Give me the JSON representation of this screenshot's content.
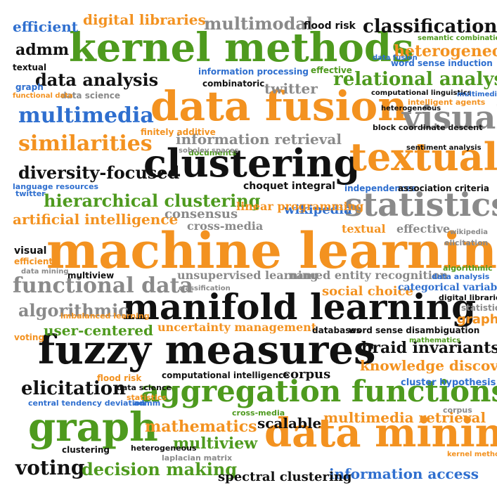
{
  "palette": {
    "green": "#4e9a1e",
    "orange": "#f39220",
    "blue": "#2f6fcf",
    "black": "#111111",
    "gray": "#8a8a8a"
  },
  "words": {
    "kernel_methods": "kernel methods",
    "data_fusion": "data fusion",
    "clustering": "clustering",
    "textual": "textual",
    "statistics": "statistics",
    "machine_learning": "machine learning",
    "manifold_learning": "manifold learning",
    "fuzzy_measures": "fuzzy measures",
    "aggregation_functions": "aggregation functions",
    "data_mining": "data mining",
    "graph": "graph",
    "visual": "visual",
    "classification": "classification",
    "multimedia": "multimedia",
    "similarities": "similarities",
    "data_analysis": "data analysis",
    "relational_analysis": "relational analysis",
    "information_retrieval": "information retrieval",
    "diversity_focused": "diversity-focused",
    "hierarchical_clustering": "hierarchical clustering",
    "artificial_intelligence": "artificial intelligence",
    "functional_data": "functional data",
    "algorithmic": "algorithmic",
    "elicitation": "elicitation",
    "voting": "voting",
    "decision_making": "decision making",
    "braid_invariants": "braid invariants",
    "knowledge_discovery": "knowledge discovery",
    "multimedia_retrieval": "multimedia retrieval",
    "information_access": "information access",
    "mathematics": "mathematics",
    "multiview": "multiview",
    "user_centered": "user-centered",
    "uncertainty_management": "uncertainty management",
    "similarities2": "similarities",
    "heterogeneous": "heterogeneous",
    "digital_libraries": "digital libraries",
    "efficient": "efficient",
    "admm": "admm",
    "multimodal": "multimodal",
    "twitter": "twitter",
    "wikipedia": "wikipedia",
    "consensus": "consensus",
    "cross_media": "cross-media",
    "linear_programming": "linear programming",
    "social_choice": "social choice",
    "categorical_variables": "categorical variables",
    "unsupervised_learning": "unsupervised learning",
    "named_entity_recognition": "named entity recognition",
    "corpus": "corpus",
    "scalable": "scalable",
    "spectral_clustering": "spectral clustering",
    "fuzzy_measures_small": "fuzzy measures",
    "information_processing": "information processing",
    "combinatoric": "combinatoric",
    "word_sense_induction": "word sense induction",
    "intelligent_agents": "intelligent agents",
    "computational_linguistics": "computational linguistics",
    "flood_risk": "flood risk",
    "semantic_combination": "semantic combination",
    "finitely_additive": "finitely additive",
    "block_coordinate_descent": "block coordinate descent",
    "sentiment_analysis": "sentiment analysis",
    "choquet_integral": "choquet integral",
    "independences": "independences",
    "association_criteria": "association criteria",
    "documents": "documents",
    "cluster_hypothesis": "cluster hypothesis",
    "imbalanced_learning": "imbalanced learning",
    "computational_intelligence": "computational intelligence",
    "central_tendency_deviation": "central tendency deviation",
    "laplacian_matrix": "laplacian matrix",
    "sobolev_spaces": "sobolev spaces",
    "heterogeneous_small": "heterogeneous",
    "effective": "effective",
    "graph_small": "graph",
    "data_science": "data science",
    "twitter_small": "twitter",
    "language_resources": "language resources",
    "clustering_small": "clustering",
    "voting_small": "voting",
    "statistics_small": "statistics",
    "textual_small": "textual",
    "visual_small": "visual",
    "efficient_small": "efficient",
    "data_mining_small": "data mining",
    "functional_data_small": "functional data",
    "multiview_small": "multiview",
    "classification_small": "classification",
    "data_analysis_small": "data analysis",
    "kernel_methods_small": "kernel methods",
    "digital_libraries_small": "digital libraries",
    "mathematics_small": "mathematics",
    "algorithmic_small": "algorithmic",
    "elicitation_small": "elicitation",
    "graph_small2": "graph",
    "multimedia_small": "multimedia",
    "data_fusion_small": "data fusion",
    "word_sense_disambiguation": "word sense disambiguation",
    "databases": "databases",
    "textual_med": "textual",
    "effective_med": "effective",
    "wikipedia_small": "wikipedia",
    "cross_media_small": "cross-media",
    "data_science_small": "data science",
    "admm_small": "admm",
    "corpus_small": "corpus",
    "flood_risk_small": "flood risk",
    "heterogeneous_small2": "heterogeneous",
    "statistics_small2": "statistics"
  }
}
